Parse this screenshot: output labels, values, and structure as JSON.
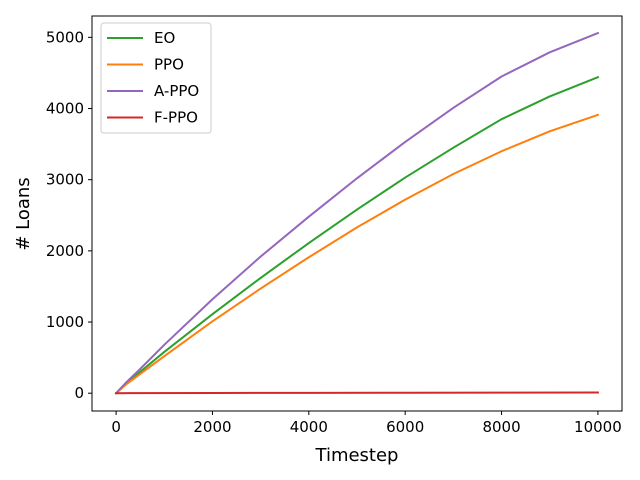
{
  "chart_data": {
    "type": "line",
    "xlabel": "Timestep",
    "ylabel": "# Loans",
    "xlim": [
      -500,
      10500
    ],
    "ylim": [
      -250,
      5300
    ],
    "xticks": [
      0,
      2000,
      4000,
      6000,
      8000,
      10000
    ],
    "yticks": [
      0,
      1000,
      2000,
      3000,
      4000,
      5000
    ],
    "grid": false,
    "legend_position": "top-left",
    "series": [
      {
        "name": "EO",
        "color": "#2ca02c",
        "points": [
          [
            0,
            0
          ],
          [
            200,
            130
          ],
          [
            500,
            300
          ],
          [
            1000,
            580
          ],
          [
            2000,
            1110
          ],
          [
            3000,
            1620
          ],
          [
            4000,
            2110
          ],
          [
            5000,
            2580
          ],
          [
            6000,
            3030
          ],
          [
            7000,
            3450
          ],
          [
            8000,
            3850
          ],
          [
            9000,
            4170
          ],
          [
            10000,
            4440
          ]
        ]
      },
      {
        "name": "PPO",
        "color": "#ff7f0e",
        "points": [
          [
            0,
            0
          ],
          [
            200,
            120
          ],
          [
            500,
            270
          ],
          [
            1000,
            520
          ],
          [
            2000,
            1010
          ],
          [
            3000,
            1470
          ],
          [
            4000,
            1910
          ],
          [
            5000,
            2330
          ],
          [
            6000,
            2720
          ],
          [
            7000,
            3080
          ],
          [
            8000,
            3400
          ],
          [
            9000,
            3680
          ],
          [
            10000,
            3910
          ]
        ]
      },
      {
        "name": "A-PPO",
        "color": "#9467bd",
        "points": [
          [
            0,
            0
          ],
          [
            200,
            145
          ],
          [
            500,
            340
          ],
          [
            1000,
            680
          ],
          [
            2000,
            1320
          ],
          [
            3000,
            1920
          ],
          [
            4000,
            2480
          ],
          [
            5000,
            3020
          ],
          [
            6000,
            3530
          ],
          [
            7000,
            4010
          ],
          [
            8000,
            4450
          ],
          [
            9000,
            4790
          ],
          [
            10000,
            5060
          ]
        ]
      },
      {
        "name": "F-PPO",
        "color": "#d62728",
        "points": [
          [
            0,
            0
          ],
          [
            2000,
            3
          ],
          [
            4000,
            5
          ],
          [
            6000,
            7
          ],
          [
            8000,
            9
          ],
          [
            10000,
            10
          ]
        ]
      }
    ]
  }
}
